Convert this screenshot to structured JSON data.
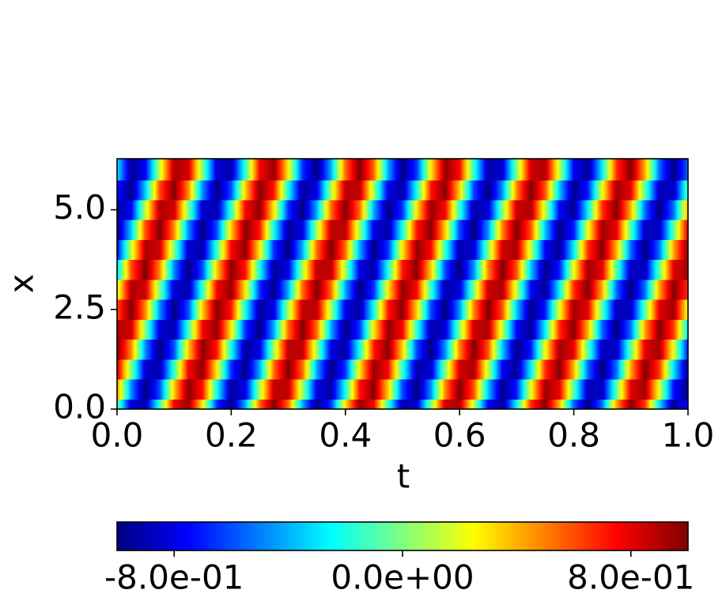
{
  "chart_data": {
    "type": "heatmap",
    "xlabel": "t",
    "ylabel": "x",
    "x": [
      0,
      0.025,
      0.05,
      0.075,
      0.1,
      0.125,
      0.15,
      0.175,
      0.2,
      0.225,
      0.25,
      0.275,
      0.3,
      0.325,
      0.35,
      0.375,
      0.4,
      0.425,
      0.45,
      0.475,
      0.5,
      0.525,
      0.55,
      0.575,
      0.6,
      0.625,
      0.65,
      0.675,
      0.7,
      0.725,
      0.75,
      0.775,
      0.8,
      0.825,
      0.85,
      0.875,
      0.9,
      0.925,
      0.95,
      0.975,
      1
    ],
    "y": [
      0,
      0.5,
      1,
      1.5,
      2,
      2.5,
      3,
      3.5,
      4,
      4.5,
      5,
      5.5,
      6
    ],
    "z": [
      [
        0,
        -0.84,
        -0.91,
        -0.14,
        0.76,
        0.96,
        0.28,
        -0.66,
        -0.99,
        -0.41,
        0.54,
        1,
        0.54,
        -0.42,
        -0.99,
        -0.65,
        0.29,
        0.96,
        0.75,
        -0.15,
        -0.91,
        -0.84,
        0.01,
        0.85,
        0.91,
        0.13,
        -0.76,
        -0.96,
        -0.27,
        0.66,
        0.99,
        0.4,
        -0.55,
        -1,
        -0.53,
        0.43,
        0.99,
        0.64,
        -0.3,
        -0.96,
        -0.75
      ],
      [
        0.48,
        -0.48,
        -1,
        -0.6,
        0.35,
        0.98,
        0.71,
        -0.22,
        -0.94,
        -0.8,
        0.08,
        0.88,
        0.88,
        0.07,
        -0.8,
        -0.93,
        -0.21,
        0.71,
        0.98,
        0.34,
        -0.61,
        -1,
        -0.47,
        0.49,
        1,
        0.59,
        -0.36,
        -0.98,
        -0.7,
        0.22,
        0.94,
        0.79,
        -0.08,
        -0.88,
        -0.87,
        -0.06,
        0.81,
        0.93,
        0.2,
        -0.72,
        -0.97
      ],
      [
        0.84,
        0,
        -0.84,
        -0.91,
        -0.14,
        0.76,
        0.96,
        0.28,
        -0.66,
        -0.99,
        -0.41,
        0.54,
        1,
        0.54,
        -0.42,
        -0.99,
        -0.65,
        0.29,
        0.96,
        0.75,
        -0.15,
        -0.91,
        -0.84,
        0.01,
        0.85,
        0.91,
        0.13,
        -0.76,
        -0.96,
        -0.27,
        0.66,
        0.99,
        0.4,
        -0.55,
        -1,
        -0.53,
        0.43,
        0.99,
        0.64,
        -0.3,
        -0.96
      ],
      [
        1,
        0.48,
        -0.48,
        -1,
        -0.6,
        0.35,
        0.98,
        0.71,
        -0.22,
        -0.94,
        -0.8,
        0.08,
        0.88,
        0.88,
        0.07,
        -0.8,
        -0.93,
        -0.21,
        0.71,
        0.98,
        0.34,
        -0.61,
        -1,
        -0.47,
        0.49,
        1,
        0.59,
        -0.36,
        -0.98,
        -0.7,
        0.22,
        0.94,
        0.79,
        -0.08,
        -0.88,
        -0.87,
        -0.06,
        0.81,
        0.93,
        0.2,
        -0.72
      ],
      [
        0.91,
        0.84,
        0,
        -0.84,
        -0.91,
        -0.14,
        0.76,
        0.96,
        0.28,
        -0.66,
        -0.99,
        -0.41,
        0.54,
        1,
        0.54,
        -0.42,
        -0.99,
        -0.65,
        0.29,
        0.96,
        0.75,
        -0.15,
        -0.91,
        -0.84,
        0.01,
        0.85,
        0.91,
        0.13,
        -0.76,
        -0.96,
        -0.27,
        0.66,
        0.99,
        0.4,
        -0.55,
        -1,
        -0.53,
        0.43,
        0.99,
        0.64,
        -0.3
      ],
      [
        0.6,
        1,
        0.48,
        -0.48,
        -1,
        -0.6,
        0.35,
        0.98,
        0.71,
        -0.22,
        -0.94,
        -0.8,
        0.08,
        0.88,
        0.88,
        0.07,
        -0.8,
        -0.93,
        -0.21,
        0.71,
        0.98,
        0.34,
        -0.61,
        -1,
        -0.47,
        0.49,
        1,
        0.59,
        -0.36,
        -0.98,
        -0.7,
        0.22,
        0.94,
        0.79,
        -0.08,
        -0.88,
        -0.87,
        -0.06,
        0.81,
        0.93,
        0.2
      ],
      [
        0.14,
        0.91,
        0.84,
        0,
        -0.84,
        -0.91,
        -0.14,
        0.76,
        0.96,
        0.28,
        -0.66,
        -0.99,
        -0.41,
        0.54,
        1,
        0.54,
        -0.42,
        -0.99,
        -0.65,
        0.29,
        0.96,
        0.75,
        -0.15,
        -0.91,
        -0.84,
        0.01,
        0.85,
        0.91,
        0.13,
        -0.76,
        -0.96,
        -0.27,
        0.66,
        0.99,
        0.4,
        -0.55,
        -1,
        -0.53,
        0.43,
        0.99,
        0.64
      ],
      [
        -0.35,
        0.6,
        1,
        0.48,
        -0.48,
        -1,
        -0.6,
        0.35,
        0.98,
        0.71,
        -0.22,
        -0.94,
        -0.8,
        0.08,
        0.88,
        0.88,
        0.07,
        -0.8,
        -0.93,
        -0.21,
        0.71,
        0.98,
        0.34,
        -0.61,
        -1,
        -0.47,
        0.49,
        1,
        0.59,
        -0.36,
        -0.98,
        -0.7,
        0.22,
        0.94,
        0.79,
        -0.08,
        -0.88,
        -0.87,
        -0.06,
        0.81,
        0.93
      ],
      [
        -0.76,
        0.14,
        0.91,
        0.84,
        0,
        -0.84,
        -0.91,
        -0.14,
        0.76,
        0.96,
        0.28,
        -0.66,
        -0.99,
        -0.41,
        0.54,
        1,
        0.54,
        -0.42,
        -0.99,
        -0.65,
        0.29,
        0.96,
        0.75,
        -0.15,
        -0.91,
        -0.84,
        0.01,
        0.85,
        0.91,
        0.13,
        -0.76,
        -0.96,
        -0.27,
        0.66,
        0.99,
        0.4,
        -0.55,
        -1,
        -0.53,
        0.43,
        0.99
      ],
      [
        -0.98,
        -0.35,
        0.6,
        1,
        0.48,
        -0.48,
        -1,
        -0.6,
        0.35,
        0.98,
        0.71,
        -0.22,
        -0.94,
        -0.8,
        0.08,
        0.88,
        0.88,
        0.07,
        -0.8,
        -0.93,
        -0.21,
        0.71,
        0.98,
        0.34,
        -0.61,
        -1,
        -0.47,
        0.49,
        1,
        0.59,
        -0.36,
        -0.98,
        -0.7,
        0.22,
        0.94,
        0.79,
        -0.08,
        -0.88,
        -0.87,
        -0.06,
        0.81
      ],
      [
        -0.96,
        -0.76,
        0.14,
        0.91,
        0.84,
        0,
        -0.84,
        -0.91,
        -0.14,
        0.76,
        0.96,
        0.28,
        -0.66,
        -0.99,
        -0.41,
        0.54,
        1,
        0.54,
        -0.42,
        -0.99,
        -0.65,
        0.29,
        0.96,
        0.75,
        -0.15,
        -0.91,
        -0.84,
        0.01,
        0.85,
        0.91,
        0.13,
        -0.76,
        -0.96,
        -0.27,
        0.66,
        0.99,
        0.4,
        -0.55,
        -1,
        -0.53,
        0.43
      ],
      [
        -0.71,
        -0.98,
        -0.35,
        0.6,
        1,
        0.48,
        -0.48,
        -1,
        -0.6,
        0.35,
        0.98,
        0.71,
        -0.22,
        -0.94,
        -0.8,
        0.08,
        0.88,
        0.88,
        0.07,
        -0.8,
        -0.93,
        -0.21,
        0.71,
        0.98,
        0.34,
        -0.61,
        -1,
        -0.47,
        0.49,
        1,
        0.59,
        -0.36,
        -0.98,
        -0.7,
        0.22,
        0.94,
        0.79,
        -0.08,
        -0.88,
        -0.87,
        -0.06
      ],
      [
        -0.28,
        -0.96,
        -0.76,
        0.14,
        0.91,
        0.84,
        0,
        -0.84,
        -0.91,
        -0.14,
        0.76,
        0.96,
        0.28,
        -0.66,
        -0.99,
        -0.41,
        0.54,
        1,
        0.54,
        -0.42,
        -0.99,
        -0.65,
        0.29,
        0.96,
        0.75,
        -0.15,
        -0.91,
        -0.84,
        0.01,
        0.85,
        0.91,
        0.13,
        -0.76,
        -0.96,
        -0.27,
        0.66,
        0.99,
        0.4,
        -0.55,
        -1,
        -0.53
      ]
    ],
    "xlim": [
      0,
      1
    ],
    "ylim": [
      0,
      6.28
    ],
    "xticks": [
      {
        "value": 0,
        "label": "0.0"
      },
      0.2,
      0.4,
      0.6,
      0.8,
      {
        "value": 1,
        "label": "1.0"
      }
    ],
    "yticks": [
      {
        "value": 0,
        "label": "0.0"
      },
      2.5,
      {
        "value": 5,
        "label": "5.0"
      }
    ],
    "colorbar": {
      "colormap": "jet",
      "lim": [
        -1,
        1
      ],
      "ticks": [
        {
          "value": -0.8,
          "label": "-8.0e-01"
        },
        {
          "value": 0,
          "label": "0.0e+00"
        },
        {
          "value": 0.8,
          "label": "8.0e-01"
        }
      ]
    }
  }
}
